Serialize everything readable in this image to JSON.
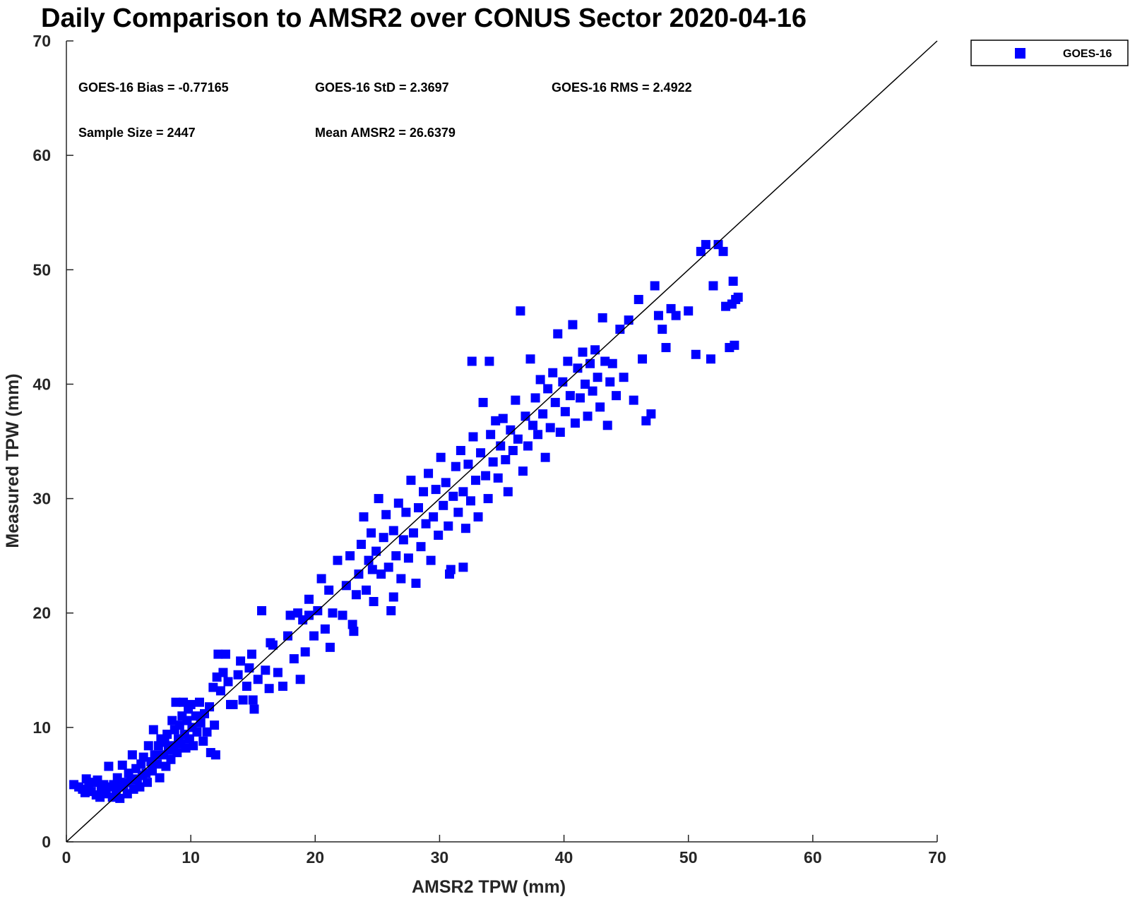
{
  "chart_data": {
    "type": "scatter",
    "title": "Daily Comparison to AMSR2 over CONUS Sector 2020-04-16",
    "xlabel": "AMSR2 TPW (mm)",
    "ylabel": "Measured TPW (mm)",
    "xlim": [
      0,
      70
    ],
    "ylim": [
      0,
      70
    ],
    "xticks": [
      "0",
      "10",
      "20",
      "30",
      "40",
      "50",
      "60",
      "70"
    ],
    "yticks": [
      "0",
      "10",
      "20",
      "30",
      "40",
      "50",
      "60",
      "70"
    ],
    "grid": false,
    "legend_position": "top-right, outside plot",
    "reference_line": {
      "x": [
        0,
        70
      ],
      "y": [
        0,
        70
      ],
      "color": "#000000"
    },
    "stats": [
      "GOES-16 Bias = -0.77165",
      "GOES-16 StD = 2.3697",
      "GOES-16 RMS = 2.4922",
      "Sample Size = 2447",
      "Mean AMSR2 = 26.6379"
    ],
    "series": [
      {
        "name": "GOES-16",
        "color": "#0000ff",
        "marker": "square",
        "points": [
          [
            0.6,
            5.0
          ],
          [
            1.0,
            4.8
          ],
          [
            1.3,
            4.6
          ],
          [
            1.5,
            4.3
          ],
          [
            1.6,
            5.5
          ],
          [
            1.8,
            4.9
          ],
          [
            2.0,
            4.4
          ],
          [
            2.2,
            5.2
          ],
          [
            2.4,
            4.1
          ],
          [
            2.5,
            5.4
          ],
          [
            2.7,
            3.9
          ],
          [
            2.8,
            4.7
          ],
          [
            3.0,
            5.0
          ],
          [
            3.1,
            4.2
          ],
          [
            3.2,
            4.5
          ],
          [
            3.4,
            6.6
          ],
          [
            3.5,
            4.8
          ],
          [
            3.7,
            3.9
          ],
          [
            3.8,
            5.0
          ],
          [
            4.0,
            4.5
          ],
          [
            4.1,
            5.6
          ],
          [
            4.3,
            3.8
          ],
          [
            4.4,
            5.0
          ],
          [
            4.5,
            6.7
          ],
          [
            4.6,
            4.8
          ],
          [
            4.8,
            5.2
          ],
          [
            4.9,
            4.2
          ],
          [
            5.0,
            6.0
          ],
          [
            5.2,
            5.4
          ],
          [
            5.3,
            7.6
          ],
          [
            5.4,
            4.6
          ],
          [
            5.6,
            6.4
          ],
          [
            5.7,
            5.5
          ],
          [
            5.9,
            4.8
          ],
          [
            6.0,
            6.8
          ],
          [
            6.1,
            5.8
          ],
          [
            6.2,
            7.4
          ],
          [
            6.4,
            6.0
          ],
          [
            6.5,
            5.2
          ],
          [
            6.6,
            8.4
          ],
          [
            6.8,
            7.0
          ],
          [
            6.9,
            6.2
          ],
          [
            7.0,
            9.8
          ],
          [
            7.1,
            7.6
          ],
          [
            7.3,
            6.8
          ],
          [
            7.4,
            8.4
          ],
          [
            7.5,
            5.6
          ],
          [
            7.6,
            9.0
          ],
          [
            7.8,
            7.6
          ],
          [
            7.9,
            8.7
          ],
          [
            8.0,
            6.6
          ],
          [
            8.1,
            9.4
          ],
          [
            8.2,
            8.0
          ],
          [
            8.4,
            7.2
          ],
          [
            8.5,
            10.6
          ],
          [
            8.6,
            8.4
          ],
          [
            8.7,
            9.8
          ],
          [
            8.8,
            12.2
          ],
          [
            8.9,
            7.8
          ],
          [
            9.0,
            9.0
          ],
          [
            9.1,
            10.2
          ],
          [
            9.2,
            8.6
          ],
          [
            9.3,
            11.0
          ],
          [
            9.4,
            12.2
          ],
          [
            9.5,
            9.4
          ],
          [
            9.6,
            8.2
          ],
          [
            9.7,
            10.6
          ],
          [
            9.8,
            11.6
          ],
          [
            9.9,
            9.0
          ],
          [
            10.0,
            12.0
          ],
          [
            10.1,
            10.0
          ],
          [
            10.2,
            8.4
          ],
          [
            10.4,
            11.0
          ],
          [
            10.5,
            9.6
          ],
          [
            10.7,
            12.2
          ],
          [
            10.8,
            10.4
          ],
          [
            11.0,
            8.8
          ],
          [
            11.1,
            11.2
          ],
          [
            11.3,
            9.6
          ],
          [
            11.5,
            11.8
          ],
          [
            11.6,
            7.8
          ],
          [
            11.8,
            13.5
          ],
          [
            11.9,
            10.2
          ],
          [
            12.0,
            7.6
          ],
          [
            12.1,
            14.4
          ],
          [
            12.2,
            16.4
          ],
          [
            12.4,
            13.2
          ],
          [
            12.6,
            14.8
          ],
          [
            12.8,
            16.4
          ],
          [
            13.0,
            14.0
          ],
          [
            13.4,
            12.0
          ],
          [
            13.8,
            14.6
          ],
          [
            14.0,
            15.8
          ],
          [
            14.2,
            12.4
          ],
          [
            14.5,
            13.6
          ],
          [
            14.7,
            15.2
          ],
          [
            14.9,
            16.4
          ],
          [
            15.1,
            11.6
          ],
          [
            15.4,
            14.2
          ],
          [
            15.7,
            20.2
          ],
          [
            16.0,
            15.0
          ],
          [
            16.3,
            13.4
          ],
          [
            16.6,
            17.2
          ],
          [
            17.0,
            14.8
          ],
          [
            17.4,
            13.6
          ],
          [
            17.8,
            18.0
          ],
          [
            18.0,
            19.8
          ],
          [
            18.3,
            16.0
          ],
          [
            18.6,
            20.0
          ],
          [
            19.0,
            19.4
          ],
          [
            19.2,
            16.6
          ],
          [
            19.5,
            21.2
          ],
          [
            19.9,
            18.0
          ],
          [
            20.2,
            20.2
          ],
          [
            20.5,
            23.0
          ],
          [
            20.8,
            18.6
          ],
          [
            21.1,
            22.0
          ],
          [
            21.4,
            20.0
          ],
          [
            21.8,
            24.6
          ],
          [
            22.2,
            19.8
          ],
          [
            22.5,
            22.4
          ],
          [
            22.8,
            25.0
          ],
          [
            23.1,
            18.4
          ],
          [
            23.3,
            21.6
          ],
          [
            23.5,
            23.4
          ],
          [
            23.7,
            26.0
          ],
          [
            23.9,
            28.4
          ],
          [
            24.1,
            22.0
          ],
          [
            24.3,
            24.6
          ],
          [
            24.5,
            27.0
          ],
          [
            24.7,
            21.0
          ],
          [
            24.9,
            25.4
          ],
          [
            25.1,
            30.0
          ],
          [
            25.3,
            23.4
          ],
          [
            25.5,
            26.6
          ],
          [
            25.7,
            28.6
          ],
          [
            25.9,
            24.0
          ],
          [
            26.1,
            20.2
          ],
          [
            26.3,
            27.2
          ],
          [
            26.5,
            25.0
          ],
          [
            26.7,
            29.6
          ],
          [
            26.9,
            23.0
          ],
          [
            27.1,
            26.4
          ],
          [
            27.3,
            28.8
          ],
          [
            27.5,
            24.8
          ],
          [
            27.7,
            31.6
          ],
          [
            27.9,
            27.0
          ],
          [
            28.1,
            22.6
          ],
          [
            28.3,
            29.2
          ],
          [
            28.5,
            25.8
          ],
          [
            28.7,
            30.6
          ],
          [
            28.9,
            27.8
          ],
          [
            29.1,
            32.2
          ],
          [
            29.3,
            24.6
          ],
          [
            29.5,
            28.4
          ],
          [
            29.7,
            30.8
          ],
          [
            29.9,
            26.8
          ],
          [
            30.1,
            33.6
          ],
          [
            30.3,
            29.4
          ],
          [
            30.5,
            31.4
          ],
          [
            30.7,
            27.6
          ],
          [
            30.9,
            23.8
          ],
          [
            31.1,
            30.2
          ],
          [
            31.3,
            32.8
          ],
          [
            31.5,
            28.8
          ],
          [
            31.7,
            34.2
          ],
          [
            31.9,
            30.6
          ],
          [
            32.1,
            27.4
          ],
          [
            32.3,
            33.0
          ],
          [
            32.5,
            29.8
          ],
          [
            32.7,
            35.4
          ],
          [
            32.9,
            31.6
          ],
          [
            33.1,
            28.4
          ],
          [
            33.3,
            34.0
          ],
          [
            33.5,
            38.4
          ],
          [
            33.7,
            32.0
          ],
          [
            33.9,
            30.0
          ],
          [
            34.1,
            35.6
          ],
          [
            34.3,
            33.2
          ],
          [
            34.5,
            36.8
          ],
          [
            34.7,
            31.8
          ],
          [
            34.9,
            34.6
          ],
          [
            35.1,
            37.0
          ],
          [
            35.3,
            33.4
          ],
          [
            35.5,
            30.6
          ],
          [
            35.7,
            36.0
          ],
          [
            35.9,
            34.2
          ],
          [
            36.1,
            38.6
          ],
          [
            36.3,
            35.2
          ],
          [
            36.5,
            46.4
          ],
          [
            36.7,
            32.4
          ],
          [
            36.9,
            37.2
          ],
          [
            37.1,
            34.6
          ],
          [
            37.3,
            42.2
          ],
          [
            37.5,
            36.4
          ],
          [
            37.7,
            38.8
          ],
          [
            37.9,
            35.6
          ],
          [
            38.1,
            40.4
          ],
          [
            38.3,
            37.4
          ],
          [
            38.5,
            33.6
          ],
          [
            38.7,
            39.6
          ],
          [
            38.9,
            36.2
          ],
          [
            39.1,
            41.0
          ],
          [
            39.3,
            38.4
          ],
          [
            39.5,
            44.4
          ],
          [
            39.7,
            35.8
          ],
          [
            39.9,
            40.2
          ],
          [
            40.1,
            37.6
          ],
          [
            40.3,
            42.0
          ],
          [
            40.5,
            39.0
          ],
          [
            40.7,
            45.2
          ],
          [
            40.9,
            36.6
          ],
          [
            41.1,
            41.4
          ],
          [
            41.3,
            38.8
          ],
          [
            41.5,
            42.8
          ],
          [
            41.7,
            40.0
          ],
          [
            41.9,
            37.2
          ],
          [
            42.1,
            41.8
          ],
          [
            42.3,
            39.4
          ],
          [
            42.5,
            43.0
          ],
          [
            42.7,
            40.6
          ],
          [
            42.9,
            38.0
          ],
          [
            43.1,
            45.8
          ],
          [
            43.3,
            42.0
          ],
          [
            43.5,
            36.4
          ],
          [
            43.7,
            40.2
          ],
          [
            43.9,
            41.8
          ],
          [
            44.2,
            39.0
          ],
          [
            44.5,
            44.8
          ],
          [
            44.8,
            40.6
          ],
          [
            45.2,
            45.6
          ],
          [
            45.6,
            38.6
          ],
          [
            46.0,
            47.4
          ],
          [
            46.3,
            42.2
          ],
          [
            46.6,
            36.8
          ],
          [
            47.0,
            37.4
          ],
          [
            47.3,
            48.6
          ],
          [
            47.6,
            46.0
          ],
          [
            47.9,
            44.8
          ],
          [
            48.2,
            43.2
          ],
          [
            48.6,
            46.6
          ],
          [
            49.0,
            46.0
          ],
          [
            50.0,
            46.4
          ],
          [
            50.6,
            42.6
          ],
          [
            51.0,
            51.6
          ],
          [
            51.4,
            52.2
          ],
          [
            51.8,
            42.2
          ],
          [
            52.0,
            48.6
          ],
          [
            52.4,
            52.2
          ],
          [
            52.8,
            51.6
          ],
          [
            53.0,
            46.8
          ],
          [
            53.3,
            43.2
          ],
          [
            53.5,
            47.0
          ],
          [
            53.6,
            49.0
          ],
          [
            53.7,
            43.4
          ],
          [
            53.8,
            47.4
          ],
          [
            54.0,
            47.6
          ],
          [
            34.0,
            42.0
          ],
          [
            32.6,
            42.0
          ],
          [
            30.8,
            23.4
          ],
          [
            31.9,
            24.0
          ],
          [
            26.3,
            21.4
          ],
          [
            24.6,
            23.8
          ],
          [
            23.0,
            19.0
          ],
          [
            21.2,
            17.0
          ],
          [
            19.5,
            19.8
          ],
          [
            18.8,
            14.2
          ],
          [
            16.4,
            17.4
          ],
          [
            15.0,
            12.4
          ],
          [
            13.2,
            12.0
          ]
        ]
      }
    ]
  }
}
